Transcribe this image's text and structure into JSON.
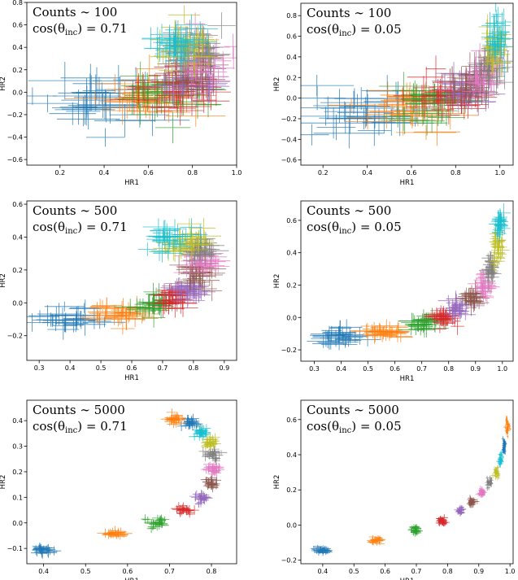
{
  "chart_data": [
    {
      "type": "scatter",
      "annotation_line1": "Counts ∼ 100",
      "annotation_line2_prefix": "cos(θ",
      "annotation_line2_sub": "inc",
      "annotation_line2_suffix": ") = 0.71",
      "xlabel": "HR1",
      "ylabel": "HR2",
      "xlim": [
        0.05,
        1.0
      ],
      "ylim": [
        -0.65,
        0.8
      ],
      "xticks": [
        0.2,
        0.4,
        0.6,
        0.8,
        1.0
      ],
      "xtick_labels": [
        "0.2",
        "0.4",
        "0.6",
        "0.8",
        "1.0"
      ],
      "yticks": [
        -0.6,
        -0.4,
        -0.2,
        0.0,
        0.2,
        0.4,
        0.6,
        0.8
      ],
      "ytick_labels": [
        "−0.6",
        "−0.4",
        "−0.2",
        "0.0",
        "0.2",
        "0.4",
        "0.6",
        "0.8"
      ],
      "clusters": [
        {
          "x": 0.4,
          "y": -0.06,
          "sx": 0.12,
          "sy": 0.12,
          "ex": 0.12,
          "ey": 0.12
        },
        {
          "x": 0.57,
          "y": -0.05,
          "sx": 0.1,
          "sy": 0.1,
          "ex": 0.1,
          "ey": 0.11
        },
        {
          "x": 0.67,
          "y": -0.01,
          "sx": 0.09,
          "sy": 0.1,
          "ex": 0.09,
          "ey": 0.1
        },
        {
          "x": 0.74,
          "y": 0.04,
          "sx": 0.08,
          "sy": 0.1,
          "ex": 0.08,
          "ey": 0.1
        },
        {
          "x": 0.79,
          "y": 0.12,
          "sx": 0.07,
          "sy": 0.1,
          "ex": 0.07,
          "ey": 0.1
        },
        {
          "x": 0.82,
          "y": 0.22,
          "sx": 0.06,
          "sy": 0.1,
          "ex": 0.06,
          "ey": 0.1
        },
        {
          "x": 0.82,
          "y": 0.31,
          "sx": 0.06,
          "sy": 0.1,
          "ex": 0.06,
          "ey": 0.1
        },
        {
          "x": 0.8,
          "y": 0.38,
          "sx": 0.06,
          "sy": 0.1,
          "ex": 0.06,
          "ey": 0.1
        },
        {
          "x": 0.77,
          "y": 0.42,
          "sx": 0.06,
          "sy": 0.1,
          "ex": 0.06,
          "ey": 0.1
        },
        {
          "x": 0.72,
          "y": 0.43,
          "sx": 0.06,
          "sy": 0.1,
          "ex": 0.06,
          "ey": 0.1
        }
      ]
    },
    {
      "type": "scatter",
      "annotation_line1": "Counts ∼ 100",
      "annotation_line2_prefix": "cos(θ",
      "annotation_line2_sub": "inc",
      "annotation_line2_suffix": ") = 0.05",
      "xlabel": "HR1",
      "ylabel": "HR2",
      "xlim": [
        0.1,
        1.06
      ],
      "ylim": [
        -0.65,
        0.92
      ],
      "xticks": [
        0.2,
        0.4,
        0.6,
        0.8,
        1.0
      ],
      "xtick_labels": [
        "0.2",
        "0.4",
        "0.6",
        "0.8",
        "1.0"
      ],
      "yticks": [
        -0.6,
        -0.4,
        -0.2,
        0.0,
        0.2,
        0.4,
        0.6,
        0.8
      ],
      "ytick_labels": [
        "−0.6",
        "−0.4",
        "−0.2",
        "0.0",
        "0.2",
        "0.4",
        "0.6",
        "0.8"
      ],
      "clusters": [
        {
          "x": 0.4,
          "y": -0.12,
          "sx": 0.12,
          "sy": 0.11,
          "ex": 0.12,
          "ey": 0.12
        },
        {
          "x": 0.57,
          "y": -0.09,
          "sx": 0.1,
          "sy": 0.1,
          "ex": 0.1,
          "ey": 0.11
        },
        {
          "x": 0.7,
          "y": -0.04,
          "sx": 0.08,
          "sy": 0.09,
          "ex": 0.08,
          "ey": 0.1
        },
        {
          "x": 0.78,
          "y": 0.01,
          "sx": 0.07,
          "sy": 0.09,
          "ex": 0.07,
          "ey": 0.1
        },
        {
          "x": 0.84,
          "y": 0.07,
          "sx": 0.06,
          "sy": 0.09,
          "ex": 0.06,
          "ey": 0.1
        },
        {
          "x": 0.89,
          "y": 0.14,
          "sx": 0.05,
          "sy": 0.09,
          "ex": 0.05,
          "ey": 0.1
        },
        {
          "x": 0.93,
          "y": 0.22,
          "sx": 0.04,
          "sy": 0.1,
          "ex": 0.04,
          "ey": 0.1
        },
        {
          "x": 0.96,
          "y": 0.32,
          "sx": 0.03,
          "sy": 0.1,
          "ex": 0.03,
          "ey": 0.1
        },
        {
          "x": 0.98,
          "y": 0.45,
          "sx": 0.025,
          "sy": 0.11,
          "ex": 0.03,
          "ey": 0.1
        },
        {
          "x": 0.99,
          "y": 0.6,
          "sx": 0.02,
          "sy": 0.11,
          "ex": 0.03,
          "ey": 0.1
        }
      ]
    },
    {
      "type": "scatter",
      "annotation_line1": "Counts ∼ 500",
      "annotation_line2_prefix": "cos(θ",
      "annotation_line2_sub": "inc",
      "annotation_line2_suffix": ") = 0.71",
      "xlabel": "HR1",
      "ylabel": "HR2",
      "xlim": [
        0.26,
        0.94
      ],
      "ylim": [
        -0.35,
        0.62
      ],
      "xticks": [
        0.3,
        0.4,
        0.5,
        0.6,
        0.7,
        0.8,
        0.9
      ],
      "xtick_labels": [
        "0.3",
        "0.4",
        "0.5",
        "0.6",
        "0.7",
        "0.8",
        "0.9"
      ],
      "yticks": [
        -0.2,
        0.0,
        0.2,
        0.4,
        0.6
      ],
      "ytick_labels": [
        "−0.2",
        "0.0",
        "0.2",
        "0.4",
        "0.6"
      ],
      "clusters": [
        {
          "x": 0.4,
          "y": -0.1,
          "sx": 0.05,
          "sy": 0.035,
          "ex": 0.05,
          "ey": 0.05
        },
        {
          "x": 0.56,
          "y": -0.06,
          "sx": 0.04,
          "sy": 0.03,
          "ex": 0.05,
          "ey": 0.05
        },
        {
          "x": 0.67,
          "y": -0.01,
          "sx": 0.035,
          "sy": 0.03,
          "ex": 0.04,
          "ey": 0.05
        },
        {
          "x": 0.74,
          "y": 0.03,
          "sx": 0.03,
          "sy": 0.03,
          "ex": 0.04,
          "ey": 0.05
        },
        {
          "x": 0.79,
          "y": 0.08,
          "sx": 0.025,
          "sy": 0.035,
          "ex": 0.04,
          "ey": 0.05
        },
        {
          "x": 0.82,
          "y": 0.17,
          "sx": 0.025,
          "sy": 0.04,
          "ex": 0.04,
          "ey": 0.05
        },
        {
          "x": 0.83,
          "y": 0.26,
          "sx": 0.025,
          "sy": 0.04,
          "ex": 0.04,
          "ey": 0.05
        },
        {
          "x": 0.82,
          "y": 0.33,
          "sx": 0.025,
          "sy": 0.035,
          "ex": 0.04,
          "ey": 0.05
        },
        {
          "x": 0.78,
          "y": 0.37,
          "sx": 0.03,
          "sy": 0.035,
          "ex": 0.04,
          "ey": 0.05
        },
        {
          "x": 0.72,
          "y": 0.41,
          "sx": 0.035,
          "sy": 0.04,
          "ex": 0.04,
          "ey": 0.05
        }
      ]
    },
    {
      "type": "scatter",
      "annotation_line1": "Counts ∼ 500",
      "annotation_line2_prefix": "cos(θ",
      "annotation_line2_sub": "inc",
      "annotation_line2_suffix": ") = 0.05",
      "xlabel": "HR1",
      "ylabel": "HR2",
      "xlim": [
        0.25,
        1.04
      ],
      "ylim": [
        -0.27,
        0.72
      ],
      "xticks": [
        0.3,
        0.4,
        0.5,
        0.6,
        0.7,
        0.8,
        0.9,
        1.0
      ],
      "xtick_labels": [
        "0.3",
        "0.4",
        "0.5",
        "0.6",
        "0.7",
        "0.8",
        "0.9",
        "1.0"
      ],
      "yticks": [
        -0.2,
        0.0,
        0.2,
        0.4,
        0.6
      ],
      "ytick_labels": [
        "−0.2",
        "0.0",
        "0.2",
        "0.4",
        "0.6"
      ],
      "clusters": [
        {
          "x": 0.4,
          "y": -0.13,
          "sx": 0.04,
          "sy": 0.03,
          "ex": 0.05,
          "ey": 0.04
        },
        {
          "x": 0.57,
          "y": -0.09,
          "sx": 0.035,
          "sy": 0.03,
          "ex": 0.045,
          "ey": 0.04
        },
        {
          "x": 0.7,
          "y": -0.04,
          "sx": 0.03,
          "sy": 0.025,
          "ex": 0.04,
          "ey": 0.04
        },
        {
          "x": 0.78,
          "y": 0.0,
          "sx": 0.025,
          "sy": 0.025,
          "ex": 0.035,
          "ey": 0.04
        },
        {
          "x": 0.84,
          "y": 0.06,
          "sx": 0.02,
          "sy": 0.03,
          "ex": 0.03,
          "ey": 0.04
        },
        {
          "x": 0.89,
          "y": 0.12,
          "sx": 0.018,
          "sy": 0.03,
          "ex": 0.03,
          "ey": 0.04
        },
        {
          "x": 0.93,
          "y": 0.2,
          "sx": 0.015,
          "sy": 0.035,
          "ex": 0.025,
          "ey": 0.04
        },
        {
          "x": 0.96,
          "y": 0.3,
          "sx": 0.012,
          "sy": 0.04,
          "ex": 0.02,
          "ey": 0.04
        },
        {
          "x": 0.98,
          "y": 0.43,
          "sx": 0.01,
          "sy": 0.045,
          "ex": 0.02,
          "ey": 0.045
        },
        {
          "x": 0.99,
          "y": 0.58,
          "sx": 0.008,
          "sy": 0.05,
          "ex": 0.02,
          "ey": 0.045
        }
      ]
    },
    {
      "type": "scatter",
      "annotation_line1": "Counts ∼ 5000",
      "annotation_line2_prefix": "cos(θ",
      "annotation_line2_sub": "inc",
      "annotation_line2_suffix": ") = 0.71",
      "xlabel": "HR1",
      "ylabel": "HR2",
      "xlim": [
        0.36,
        0.86
      ],
      "ylim": [
        -0.16,
        0.48
      ],
      "xticks": [
        0.4,
        0.5,
        0.6,
        0.7,
        0.8
      ],
      "xtick_labels": [
        "0.4",
        "0.5",
        "0.6",
        "0.7",
        "0.8"
      ],
      "yticks": [
        -0.1,
        0.0,
        0.1,
        0.2,
        0.3,
        0.4
      ],
      "ytick_labels": [
        "−0.1",
        "0.0",
        "0.1",
        "0.2",
        "0.3",
        "0.4"
      ],
      "clusters": [
        {
          "x": 0.4,
          "y": -0.105,
          "sx": 0.012,
          "sy": 0.01,
          "ex": 0.015,
          "ey": 0.015
        },
        {
          "x": 0.57,
          "y": -0.045,
          "sx": 0.011,
          "sy": 0.009,
          "ex": 0.014,
          "ey": 0.014
        },
        {
          "x": 0.67,
          "y": 0.0,
          "sx": 0.01,
          "sy": 0.009,
          "ex": 0.013,
          "ey": 0.014
        },
        {
          "x": 0.735,
          "y": 0.05,
          "sx": 0.009,
          "sy": 0.009,
          "ex": 0.012,
          "ey": 0.014
        },
        {
          "x": 0.775,
          "y": 0.1,
          "sx": 0.008,
          "sy": 0.01,
          "ex": 0.011,
          "ey": 0.014
        },
        {
          "x": 0.8,
          "y": 0.155,
          "sx": 0.008,
          "sy": 0.01,
          "ex": 0.011,
          "ey": 0.014
        },
        {
          "x": 0.808,
          "y": 0.21,
          "sx": 0.008,
          "sy": 0.01,
          "ex": 0.011,
          "ey": 0.014
        },
        {
          "x": 0.805,
          "y": 0.265,
          "sx": 0.008,
          "sy": 0.01,
          "ex": 0.011,
          "ey": 0.014
        },
        {
          "x": 0.795,
          "y": 0.315,
          "sx": 0.008,
          "sy": 0.01,
          "ex": 0.011,
          "ey": 0.014
        },
        {
          "x": 0.775,
          "y": 0.355,
          "sx": 0.008,
          "sy": 0.01,
          "ex": 0.011,
          "ey": 0.014
        },
        {
          "x": 0.75,
          "y": 0.39,
          "sx": 0.008,
          "sy": 0.009,
          "ex": 0.011,
          "ey": 0.014
        },
        {
          "x": 0.71,
          "y": 0.405,
          "sx": 0.009,
          "sy": 0.009,
          "ex": 0.012,
          "ey": 0.014
        }
      ]
    },
    {
      "type": "scatter",
      "annotation_line1": "Counts ∼ 5000",
      "annotation_line2_prefix": "cos(θ",
      "annotation_line2_sub": "inc",
      "annotation_line2_suffix": ") = 0.05",
      "xlabel": "HR1",
      "ylabel": "HR2",
      "xlim": [
        0.33,
        1.01
      ],
      "ylim": [
        -0.22,
        0.71
      ],
      "xticks": [
        0.4,
        0.5,
        0.6,
        0.7,
        0.8,
        0.9,
        1.0
      ],
      "xtick_labels": [
        "0.4",
        "0.5",
        "0.6",
        "0.7",
        "0.8",
        "0.9",
        "1.0"
      ],
      "yticks": [
        -0.2,
        0.0,
        0.2,
        0.4,
        0.6
      ],
      "ytick_labels": [
        "−0.2",
        "0.0",
        "0.2",
        "0.4",
        "0.6"
      ],
      "clusters": [
        {
          "x": 0.4,
          "y": -0.145,
          "sx": 0.012,
          "sy": 0.01,
          "ex": 0.015,
          "ey": 0.014
        },
        {
          "x": 0.57,
          "y": -0.085,
          "sx": 0.01,
          "sy": 0.01,
          "ex": 0.013,
          "ey": 0.014
        },
        {
          "x": 0.7,
          "y": -0.03,
          "sx": 0.008,
          "sy": 0.01,
          "ex": 0.011,
          "ey": 0.014
        },
        {
          "x": 0.78,
          "y": 0.025,
          "sx": 0.007,
          "sy": 0.01,
          "ex": 0.01,
          "ey": 0.014
        },
        {
          "x": 0.84,
          "y": 0.08,
          "sx": 0.006,
          "sy": 0.011,
          "ex": 0.009,
          "ey": 0.014
        },
        {
          "x": 0.88,
          "y": 0.13,
          "sx": 0.005,
          "sy": 0.012,
          "ex": 0.008,
          "ey": 0.014
        },
        {
          "x": 0.91,
          "y": 0.185,
          "sx": 0.005,
          "sy": 0.013,
          "ex": 0.007,
          "ey": 0.014
        },
        {
          "x": 0.935,
          "y": 0.24,
          "sx": 0.004,
          "sy": 0.014,
          "ex": 0.006,
          "ey": 0.014
        },
        {
          "x": 0.955,
          "y": 0.3,
          "sx": 0.004,
          "sy": 0.016,
          "ex": 0.005,
          "ey": 0.014
        },
        {
          "x": 0.97,
          "y": 0.37,
          "sx": 0.003,
          "sy": 0.018,
          "ex": 0.005,
          "ey": 0.015
        },
        {
          "x": 0.982,
          "y": 0.45,
          "sx": 0.003,
          "sy": 0.02,
          "ex": 0.004,
          "ey": 0.015
        },
        {
          "x": 0.992,
          "y": 0.55,
          "sx": 0.003,
          "sy": 0.03,
          "ex": 0.004,
          "ey": 0.015
        }
      ]
    }
  ],
  "colors": [
    "#1f77b4",
    "#ff7f0e",
    "#2ca02c",
    "#d62728",
    "#9467bd",
    "#8c564b",
    "#e377c2",
    "#7f7f7f",
    "#bcbd22",
    "#17becf"
  ]
}
